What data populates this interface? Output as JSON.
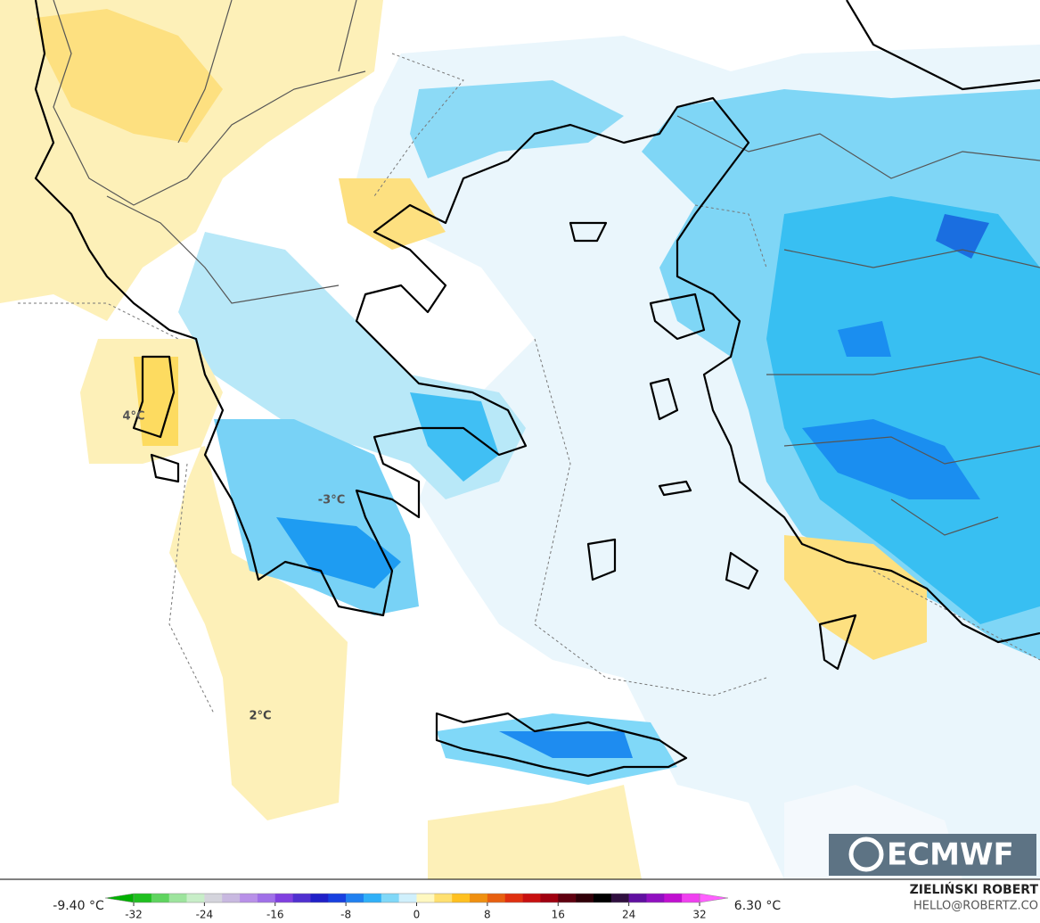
{
  "map": {
    "labels": [
      "4°C",
      "-3°C",
      "2°C"
    ]
  },
  "colorbar": {
    "min_label": "-9.40 °C",
    "max_label": "6.30 °C",
    "lim": [
      -32,
      32
    ],
    "ticks": [
      -32,
      -24,
      -16,
      -8,
      0,
      8,
      16,
      24,
      32
    ],
    "colors": [
      "#1fc01f",
      "#5fd45f",
      "#9de49d",
      "#c8eec8",
      "#d4d4dc",
      "#c8b8e0",
      "#b890e8",
      "#a070e8",
      "#8040e0",
      "#5030d0",
      "#2020c8",
      "#1840e0",
      "#2080f0",
      "#30b0f8",
      "#80d8f8",
      "#d0f0fc",
      "#fff8c0",
      "#ffe070",
      "#ffc020",
      "#f09010",
      "#e86010",
      "#e03010",
      "#c81010",
      "#a00010",
      "#600010",
      "#300008",
      "#000000",
      "#301040",
      "#6010a0",
      "#9010c0",
      "#c010d0",
      "#f040f0"
    ],
    "low_color": "#00b000",
    "high_color": "#ff60ff"
  },
  "logo": "ECMWF",
  "credits": {
    "author": "ZIELIŃSKI ROBERT",
    "contact": "HELLO@ROBERTZ.CO"
  }
}
